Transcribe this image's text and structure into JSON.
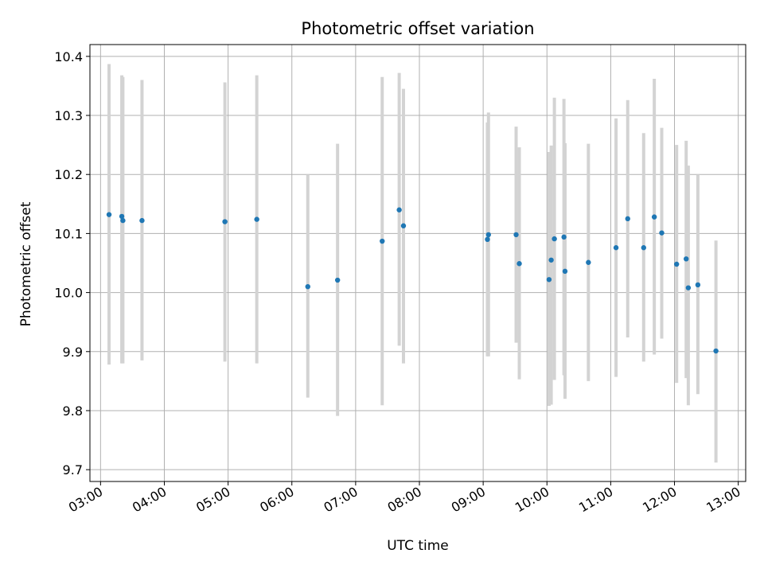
{
  "chart_data": {
    "type": "scatter",
    "title": "Photometric offset variation",
    "xlabel": "UTC time",
    "ylabel": "Photometric offset",
    "xlim": [
      "02:50",
      "13:07"
    ],
    "ylim": [
      9.68,
      10.42
    ],
    "x_ticks": [
      "03:00",
      "04:00",
      "05:00",
      "06:00",
      "07:00",
      "08:00",
      "09:00",
      "10:00",
      "11:00",
      "12:00",
      "13:00"
    ],
    "y_ticks": [
      9.7,
      9.8,
      9.9,
      10.0,
      10.1,
      10.2,
      10.3,
      10.4
    ],
    "grid": true,
    "colors": {
      "points": "#1f77b4",
      "error_bars": "#d3d3d3",
      "grid": "#b0b0b0"
    },
    "points": [
      {
        "x": "03:08",
        "y": 10.132,
        "err_low": 9.878,
        "err_high": 10.387
      },
      {
        "x": "03:20",
        "y": 10.129,
        "err_low": 9.88,
        "err_high": 10.368
      },
      {
        "x": "03:21",
        "y": 10.122,
        "err_low": 9.88,
        "err_high": 10.365
      },
      {
        "x": "03:39",
        "y": 10.122,
        "err_low": 9.885,
        "err_high": 10.36
      },
      {
        "x": "04:57",
        "y": 10.12,
        "err_low": 9.883,
        "err_high": 10.356
      },
      {
        "x": "05:27",
        "y": 10.124,
        "err_low": 9.88,
        "err_high": 10.368
      },
      {
        "x": "06:15",
        "y": 10.01,
        "err_low": 9.822,
        "err_high": 10.2
      },
      {
        "x": "06:43",
        "y": 10.021,
        "err_low": 9.791,
        "err_high": 10.252
      },
      {
        "x": "07:25",
        "y": 10.087,
        "err_low": 9.809,
        "err_high": 10.365
      },
      {
        "x": "07:41",
        "y": 10.14,
        "err_low": 9.91,
        "err_high": 10.372
      },
      {
        "x": "07:45",
        "y": 10.113,
        "err_low": 9.88,
        "err_high": 10.345
      },
      {
        "x": "09:04",
        "y": 10.09,
        "err_low": 9.892,
        "err_high": 10.288
      },
      {
        "x": "09:05",
        "y": 10.098,
        "err_low": 9.892,
        "err_high": 10.305
      },
      {
        "x": "09:31",
        "y": 10.098,
        "err_low": 9.915,
        "err_high": 10.281
      },
      {
        "x": "09:34",
        "y": 10.049,
        "err_low": 9.853,
        "err_high": 10.246
      },
      {
        "x": "10:02",
        "y": 10.022,
        "err_low": 9.808,
        "err_high": 10.238
      },
      {
        "x": "10:04",
        "y": 10.055,
        "err_low": 9.81,
        "err_high": 10.249
      },
      {
        "x": "10:07",
        "y": 10.091,
        "err_low": 9.852,
        "err_high": 10.33
      },
      {
        "x": "10:16",
        "y": 10.094,
        "err_low": 9.86,
        "err_high": 10.328
      },
      {
        "x": "10:17",
        "y": 10.036,
        "err_low": 9.82,
        "err_high": 10.253
      },
      {
        "x": "10:39",
        "y": 10.051,
        "err_low": 9.85,
        "err_high": 10.252
      },
      {
        "x": "11:05",
        "y": 10.076,
        "err_low": 9.857,
        "err_high": 10.295
      },
      {
        "x": "11:16",
        "y": 10.125,
        "err_low": 9.924,
        "err_high": 10.326
      },
      {
        "x": "11:31",
        "y": 10.076,
        "err_low": 9.883,
        "err_high": 10.27
      },
      {
        "x": "11:41",
        "y": 10.128,
        "err_low": 9.895,
        "err_high": 10.362
      },
      {
        "x": "11:48",
        "y": 10.101,
        "err_low": 9.922,
        "err_high": 10.279
      },
      {
        "x": "12:02",
        "y": 10.048,
        "err_low": 9.847,
        "err_high": 10.25
      },
      {
        "x": "12:11",
        "y": 10.057,
        "err_low": 9.855,
        "err_high": 10.257
      },
      {
        "x": "12:13",
        "y": 10.008,
        "err_low": 9.809,
        "err_high": 10.215
      },
      {
        "x": "12:22",
        "y": 10.013,
        "err_low": 9.828,
        "err_high": 10.2
      },
      {
        "x": "12:39",
        "y": 9.901,
        "err_low": 9.712,
        "err_high": 10.088
      }
    ]
  }
}
